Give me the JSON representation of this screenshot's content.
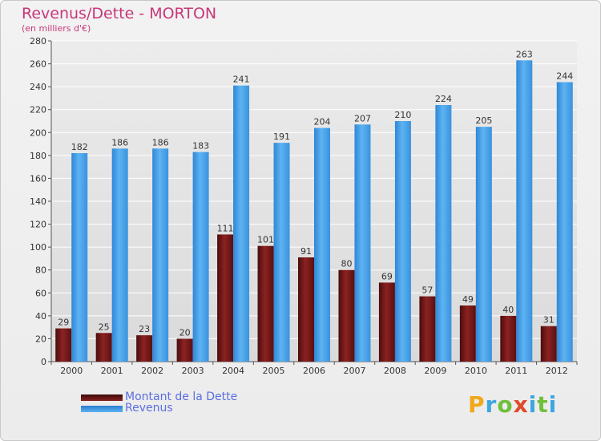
{
  "title": "Revenus/Dette - MORTON",
  "subtitle": "(en milliers d'€)",
  "brand": {
    "text": "Proxiti"
  },
  "colors": {
    "dette": "#6b1414",
    "revenus": "#3f9be4",
    "title": "#c8377a",
    "legend_text": "#5a6ee0",
    "grid": "#ffffff",
    "axis": "#555555"
  },
  "legend": {
    "items": [
      {
        "label": "Montant de la Dette"
      },
      {
        "label": "Revenus"
      }
    ]
  },
  "chart_data": {
    "type": "bar",
    "categories": [
      "2000",
      "2001",
      "2002",
      "2003",
      "2004",
      "2005",
      "2006",
      "2007",
      "2008",
      "2009",
      "2010",
      "2011",
      "2012"
    ],
    "series": [
      {
        "name": "Montant de la Dette",
        "values": [
          29,
          25,
          23,
          20,
          111,
          101,
          91,
          80,
          69,
          57,
          49,
          40,
          31
        ]
      },
      {
        "name": "Revenus",
        "values": [
          182,
          186,
          186,
          183,
          241,
          191,
          204,
          207,
          210,
          224,
          205,
          263,
          244
        ]
      }
    ],
    "ylim": [
      0,
      280
    ],
    "yticks": [
      0,
      20,
      40,
      60,
      80,
      100,
      120,
      140,
      160,
      180,
      200,
      220,
      240,
      260,
      280
    ],
    "grid": true,
    "legend_position": "bottom-left"
  }
}
